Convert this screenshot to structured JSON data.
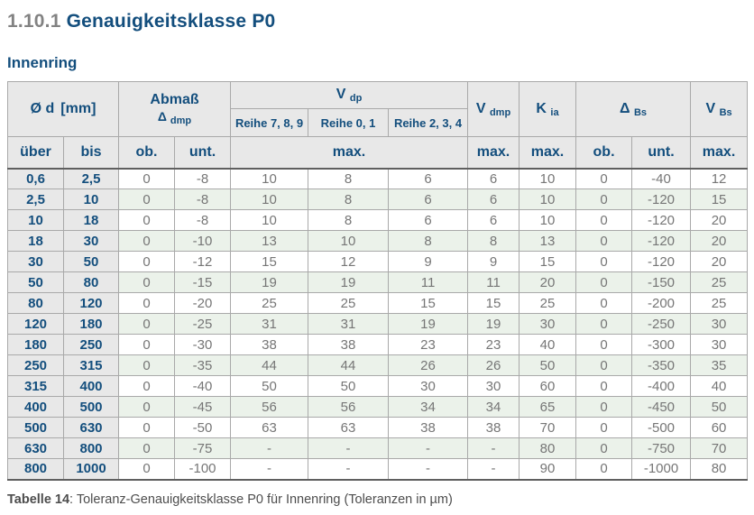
{
  "page": {
    "section_number": "1.10.1",
    "section_title": "Genauigkeitsklasse P0",
    "subtitle": "Innenring",
    "caption_label": "Tabelle 14",
    "caption_text": ": Toleranz-Genauigkeitsklasse P0 für Innenring (Toleranzen in µm)"
  },
  "colors": {
    "heading_blue": "#134e7d",
    "heading_gray": "#828282",
    "header_bg": "#e8e8e8",
    "row_alt_green": "#ebf2ea",
    "data_text_gray": "#767676",
    "border_light": "#a9a9a9",
    "border_dark": "#5f5f5f"
  },
  "table": {
    "header": {
      "col_d_main": "Ø d",
      "col_d_unit": "[mm]",
      "col_abmass": "Abmaß",
      "col_abmass_symbol": "Δ",
      "col_abmass_index": "dmp",
      "col_vdp_symbol": "V",
      "col_vdp_index": "dp",
      "reihe_789": "Reihe 7, 8, 9",
      "reihe_01": "Reihe 0, 1",
      "reihe_234": "Reihe 2, 3, 4",
      "col_vdmp_symbol": "V",
      "col_vdmp_index": "dmp",
      "col_kia_symbol": "K",
      "col_kia_index": "ia",
      "col_dbs_symbol": "Δ",
      "col_dbs_index": "Bs",
      "col_vbs_symbol": "V",
      "col_vbs_index": "Bs",
      "ueber": "über",
      "bis": "bis",
      "ob": "ob.",
      "unt": "unt.",
      "max": "max."
    },
    "rows": [
      [
        "0,6",
        "2,5",
        "0",
        "-8",
        "10",
        "8",
        "6",
        "6",
        "10",
        "0",
        "-40",
        "12"
      ],
      [
        "2,5",
        "10",
        "0",
        "-8",
        "10",
        "8",
        "6",
        "6",
        "10",
        "0",
        "-120",
        "15"
      ],
      [
        "10",
        "18",
        "0",
        "-8",
        "10",
        "8",
        "6",
        "6",
        "10",
        "0",
        "-120",
        "20"
      ],
      [
        "18",
        "30",
        "0",
        "-10",
        "13",
        "10",
        "8",
        "8",
        "13",
        "0",
        "-120",
        "20"
      ],
      [
        "30",
        "50",
        "0",
        "-12",
        "15",
        "12",
        "9",
        "9",
        "15",
        "0",
        "-120",
        "20"
      ],
      [
        "50",
        "80",
        "0",
        "-15",
        "19",
        "19",
        "11",
        "11",
        "20",
        "0",
        "-150",
        "25"
      ],
      [
        "80",
        "120",
        "0",
        "-20",
        "25",
        "25",
        "15",
        "15",
        "25",
        "0",
        "-200",
        "25"
      ],
      [
        "120",
        "180",
        "0",
        "-25",
        "31",
        "31",
        "19",
        "19",
        "30",
        "0",
        "-250",
        "30"
      ],
      [
        "180",
        "250",
        "0",
        "-30",
        "38",
        "38",
        "23",
        "23",
        "40",
        "0",
        "-300",
        "30"
      ],
      [
        "250",
        "315",
        "0",
        "-35",
        "44",
        "44",
        "26",
        "26",
        "50",
        "0",
        "-350",
        "35"
      ],
      [
        "315",
        "400",
        "0",
        "-40",
        "50",
        "50",
        "30",
        "30",
        "60",
        "0",
        "-400",
        "40"
      ],
      [
        "400",
        "500",
        "0",
        "-45",
        "56",
        "56",
        "34",
        "34",
        "65",
        "0",
        "-450",
        "50"
      ],
      [
        "500",
        "630",
        "0",
        "-50",
        "63",
        "63",
        "38",
        "38",
        "70",
        "0",
        "-500",
        "60"
      ],
      [
        "630",
        "800",
        "0",
        "-75",
        "-",
        "-",
        "-",
        "-",
        "80",
        "0",
        "-750",
        "70"
      ],
      [
        "800",
        "1000",
        "0",
        "-100",
        "-",
        "-",
        "-",
        "-",
        "90",
        "0",
        "-1000",
        "80"
      ]
    ]
  }
}
